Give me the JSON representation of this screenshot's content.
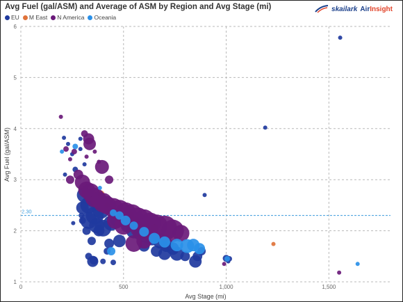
{
  "title": "Avg Fuel (gal/ASM) and Average of ASM by Region and Avg Stage (mi)",
  "logo": {
    "brand1": "skailark",
    "brand2a": "Air",
    "brand2b": "Insight"
  },
  "colors": {
    "EU": "#1f3a9e",
    "M East": "#e0733a",
    "N America": "#6a1a7a",
    "Oceania": "#2a90e8",
    "grid": "#b8b8b8",
    "reference": "#3a9bdc"
  },
  "chart_data": {
    "type": "scatter",
    "title": "Avg Fuel (gal/ASM) and Average of ASM by Region and Avg Stage (mi)",
    "xlabel": "Avg Stage (mi)",
    "ylabel": "Avg Fuel (gal/ASM)",
    "xlim": [
      0,
      1800
    ],
    "ylim": [
      1,
      6
    ],
    "x_ticks": [
      0,
      500,
      1000,
      1500
    ],
    "x_tick_labels": [
      "0",
      "500",
      "1,000",
      "1,500"
    ],
    "y_ticks": [
      1,
      2,
      3,
      4,
      5,
      6
    ],
    "y_tick_labels": [
      "1",
      "2",
      "3",
      "4",
      "5",
      "6"
    ],
    "grid": true,
    "legend": {
      "position": "top-left",
      "entries": [
        "EU",
        "M East",
        "N America",
        "Oceania"
      ]
    },
    "reference_line": {
      "y": 2.3,
      "label": "2.30"
    },
    "size_encoding": "Average of ASM",
    "series": [
      {
        "name": "EU",
        "points": [
          [
            210,
            3.82,
            3
          ],
          [
            215,
            3.1,
            3
          ],
          [
            230,
            3.7,
            3
          ],
          [
            250,
            3.5,
            3
          ],
          [
            255,
            2.15,
            3
          ],
          [
            265,
            3.2,
            4
          ],
          [
            290,
            3.6,
            3
          ],
          [
            295,
            2.3,
            4
          ],
          [
            300,
            2.2,
            5
          ],
          [
            320,
            2.0,
            6
          ],
          [
            330,
            1.5,
            5
          ],
          [
            345,
            1.8,
            6
          ],
          [
            350,
            1.4,
            8
          ],
          [
            355,
            1.42,
            6
          ],
          [
            380,
            2.0,
            8
          ],
          [
            400,
            1.4,
            4
          ],
          [
            420,
            1.6,
            5
          ],
          [
            450,
            1.38,
            4
          ],
          [
            310,
            3.3,
            3
          ],
          [
            290,
            3.8,
            3
          ],
          [
            330,
            2.5,
            12
          ],
          [
            360,
            2.3,
            13
          ],
          [
            390,
            2.4,
            12
          ],
          [
            420,
            2.5,
            10
          ],
          [
            330,
            2.2,
            12
          ],
          [
            370,
            2.1,
            11
          ],
          [
            400,
            2.05,
            12
          ],
          [
            440,
            2.15,
            11
          ],
          [
            470,
            2.2,
            10
          ],
          [
            500,
            2.25,
            10
          ],
          [
            520,
            2.1,
            10
          ],
          [
            550,
            2.0,
            11
          ],
          [
            580,
            1.95,
            10
          ],
          [
            610,
            1.9,
            10
          ],
          [
            640,
            1.85,
            10
          ],
          [
            680,
            1.8,
            11
          ],
          [
            710,
            1.72,
            10
          ],
          [
            740,
            1.65,
            9
          ],
          [
            760,
            1.55,
            10
          ],
          [
            800,
            1.5,
            7
          ],
          [
            850,
            1.4,
            9
          ],
          [
            860,
            1.5,
            7
          ],
          [
            880,
            1.6,
            6
          ],
          [
            895,
            2.7,
            3
          ],
          [
            1000,
            1.46,
            5
          ],
          [
            1010,
            1.4,
            3
          ],
          [
            1015,
            1.45,
            4
          ],
          [
            1190,
            4.02,
            3
          ],
          [
            1555,
            5.78,
            3
          ],
          [
            310,
            2.7,
            11
          ],
          [
            350,
            2.6,
            10
          ],
          [
            300,
            2.45,
            9
          ],
          [
            480,
            1.8,
            9
          ],
          [
            430,
            1.75,
            7
          ],
          [
            600,
            1.7,
            8
          ],
          [
            660,
            1.6,
            8
          ],
          [
            700,
            1.55,
            9
          ],
          [
            540,
            2.3,
            9
          ]
        ]
      },
      {
        "name": "M East",
        "points": [
          [
            390,
            2.72,
            5
          ],
          [
            420,
            2.5,
            4
          ],
          [
            530,
            2.28,
            7
          ],
          [
            560,
            2.2,
            5
          ],
          [
            650,
            2.05,
            6
          ],
          [
            1230,
            1.74,
            3
          ],
          [
            400,
            2.65,
            3
          ]
        ]
      },
      {
        "name": "N America",
        "points": [
          [
            195,
            4.23,
            3
          ],
          [
            220,
            3.6,
            4
          ],
          [
            240,
            3.4,
            3
          ],
          [
            260,
            3.55,
            4
          ],
          [
            310,
            3.9,
            5
          ],
          [
            330,
            3.8,
            8
          ],
          [
            335,
            3.7,
            9
          ],
          [
            320,
            3.45,
            3
          ],
          [
            360,
            3.55,
            3
          ],
          [
            380,
            3.35,
            3
          ],
          [
            395,
            3.25,
            10
          ],
          [
            280,
            3.1,
            7
          ],
          [
            300,
            2.95,
            11
          ],
          [
            320,
            2.8,
            12
          ],
          [
            340,
            2.75,
            13
          ],
          [
            360,
            2.65,
            14
          ],
          [
            380,
            2.6,
            12
          ],
          [
            400,
            2.55,
            14
          ],
          [
            420,
            2.5,
            13
          ],
          [
            450,
            2.45,
            14
          ],
          [
            480,
            2.4,
            15
          ],
          [
            510,
            2.35,
            15
          ],
          [
            540,
            2.3,
            16
          ],
          [
            570,
            2.25,
            15
          ],
          [
            600,
            2.2,
            16
          ],
          [
            630,
            2.15,
            15
          ],
          [
            660,
            2.1,
            16
          ],
          [
            700,
            2.05,
            18
          ],
          [
            740,
            2.0,
            16
          ],
          [
            780,
            1.95,
            12
          ],
          [
            580,
            2.05,
            14
          ],
          [
            620,
            2.0,
            13
          ],
          [
            500,
            2.1,
            13
          ],
          [
            460,
            2.2,
            12
          ],
          [
            550,
            1.75,
            12
          ],
          [
            600,
            1.8,
            11
          ],
          [
            430,
            3.0,
            6
          ],
          [
            990,
            1.35,
            3
          ],
          [
            1550,
            1.18,
            3
          ],
          [
            240,
            3.0,
            6
          ]
        ]
      },
      {
        "name": "Oceania",
        "points": [
          [
            265,
            3.65,
            4
          ],
          [
            385,
            2.84,
            3
          ],
          [
            450,
            2.35,
            5
          ],
          [
            480,
            2.3,
            6
          ],
          [
            510,
            2.2,
            7
          ],
          [
            550,
            2.1,
            6
          ],
          [
            600,
            1.98,
            7
          ],
          [
            650,
            1.85,
            8
          ],
          [
            700,
            1.78,
            8
          ],
          [
            760,
            1.72,
            9
          ],
          [
            810,
            1.7,
            10
          ],
          [
            840,
            1.72,
            9
          ],
          [
            870,
            1.65,
            8
          ],
          [
            1005,
            1.45,
            4
          ],
          [
            1640,
            1.35,
            3
          ],
          [
            200,
            3.55,
            3
          ],
          [
            440,
            1.6,
            6
          ]
        ]
      }
    ]
  }
}
